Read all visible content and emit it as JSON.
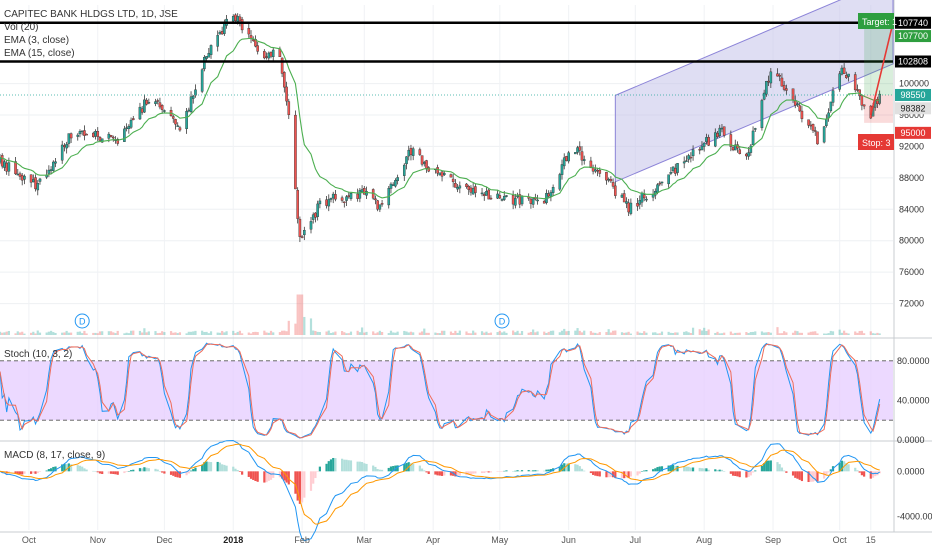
{
  "legend": {
    "title": "CAPITEC BANK HLDGS LTD, 1D, JSE",
    "vol": "Vol (20)",
    "ema3": "EMA (3, close)",
    "ema15": "EMA (15, close)"
  },
  "panes": {
    "stoch_label": "Stoch (10, 3, 2)",
    "macd_label": "MACD (8, 17, close, 9)"
  },
  "colors": {
    "up": "#26a69a",
    "down": "#ef5350",
    "ema3": "#2962ff",
    "ema15": "#4caf50",
    "channel_fill": "#c5c2ea",
    "channel_line": "#8c84d8",
    "stoch_band": "#e5ccff",
    "stoch_k": "#2196f3",
    "stoch_d": "#ef6c5a",
    "macd_line": "#2196f3",
    "signal_line": "#ff9800",
    "target_green": "#2e9e3f",
    "stop_red": "#e53935"
  },
  "chart_data": [
    {
      "type": "candlestick",
      "title": "CAPITEC BANK HLDGS LTD, 1D, JSE",
      "y_ticks": [
        "72000",
        "76000",
        "80000",
        "84000",
        "88000",
        "92000",
        "96000",
        "100000"
      ],
      "ylim": [
        68000,
        110000
      ],
      "x_ticks": [
        "Oct",
        "Nov",
        "Dec",
        "2018",
        "Feb",
        "Mar",
        "Apr",
        "May",
        "Jun",
        "Jul",
        "Aug",
        "Sep",
        "Oct",
        "15"
      ],
      "x_range": [
        "2017-09-18",
        "2018-10-25"
      ],
      "key_prices": [
        {
          "label": "107740",
          "value": 107740
        },
        {
          "label": "107700",
          "value": 107700
        },
        {
          "label": "102808",
          "value": 102808
        },
        {
          "label": "98550",
          "value": 98550
        },
        {
          "label": "98382",
          "value": 98382
        },
        {
          "label": "95000",
          "value": 95000
        }
      ],
      "target_label": "Target: 1",
      "stop_label": "Stop: 3",
      "anchors": [
        [
          "2017-09-18",
          90000
        ],
        [
          "2017-10-05",
          87000
        ],
        [
          "2017-10-20",
          93500
        ],
        [
          "2017-11-10",
          93000
        ],
        [
          "2017-11-25",
          98500
        ],
        [
          "2017-12-08",
          94000
        ],
        [
          "2017-12-20",
          104000
        ],
        [
          "2018-01-01",
          109000
        ],
        [
          "2018-01-12",
          104000
        ],
        [
          "2018-01-22",
          103500
        ],
        [
          "2018-01-26",
          96000
        ],
        [
          "2018-01-31",
          80000
        ],
        [
          "2018-02-10",
          85000
        ],
        [
          "2018-02-28",
          86000
        ],
        [
          "2018-03-08",
          84500
        ],
        [
          "2018-03-22",
          91500
        ],
        [
          "2018-04-05",
          88000
        ],
        [
          "2018-04-25",
          86000
        ],
        [
          "2018-05-20",
          84500
        ],
        [
          "2018-06-02",
          92000
        ],
        [
          "2018-06-20",
          87000
        ],
        [
          "2018-06-28",
          84000
        ],
        [
          "2018-07-15",
          88000
        ],
        [
          "2018-08-08",
          94000
        ],
        [
          "2018-08-20",
          90500
        ],
        [
          "2018-08-31",
          102000
        ],
        [
          "2018-09-10",
          98000
        ],
        [
          "2018-09-22",
          92500
        ],
        [
          "2018-10-02",
          102500
        ],
        [
          "2018-10-08",
          99000
        ],
        [
          "2018-10-15",
          96000
        ],
        [
          "2018-10-19",
          98400
        ]
      ],
      "volume_spike_date": "2018-01-31",
      "dividend_markers": [
        {
          "date": "2017-10-25",
          "label": "D"
        },
        {
          "date": "2018-05-02",
          "label": "D"
        }
      ],
      "channel": {
        "start": [
          "2018-06-22",
          93000
        ],
        "end": [
          "2018-10-25",
          108000
        ],
        "width": 11000
      },
      "target_line": {
        "start": [
          "2018-10-15",
          96000
        ],
        "end": [
          "2018-10-25",
          107740
        ]
      }
    },
    {
      "type": "line",
      "title": "Stoch (10, 3, 2)",
      "y_ticks": [
        "0.0000",
        "40.0000",
        "80.0000"
      ],
      "ylim": [
        0,
        100
      ],
      "bands": [
        20,
        80
      ]
    },
    {
      "type": "bar",
      "title": "MACD (8, 17, close, 9)",
      "y_ticks": [
        "-4000.0000",
        "0.0000"
      ],
      "ylim": [
        -5200,
        2600
      ]
    }
  ]
}
